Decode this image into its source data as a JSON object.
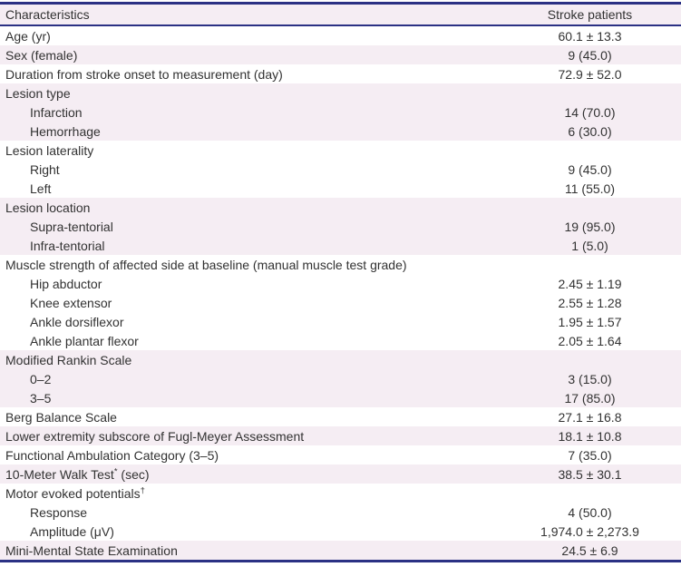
{
  "table": {
    "columns": {
      "characteristics": "Characteristics",
      "value": "Stroke patients"
    },
    "colors": {
      "accent_navy": "#2b3184",
      "stripe_pink": "#f5edf3",
      "text": "#323232"
    },
    "rows": [
      {
        "label": "Age (yr)",
        "sup": "",
        "suffix": "",
        "value": "60.1 ± 13.3",
        "indent": false,
        "shade": false
      },
      {
        "label": "Sex (female)",
        "sup": "",
        "suffix": "",
        "value": "9 (45.0)",
        "indent": false,
        "shade": true
      },
      {
        "label": "Duration from stroke onset to measurement (day)",
        "sup": "",
        "suffix": "",
        "value": "72.9 ± 52.0",
        "indent": false,
        "shade": false
      },
      {
        "label": "Lesion type",
        "sup": "",
        "suffix": "",
        "value": "",
        "indent": false,
        "shade": true
      },
      {
        "label": "Infarction",
        "sup": "",
        "suffix": "",
        "value": "14 (70.0)",
        "indent": true,
        "shade": true
      },
      {
        "label": "Hemorrhage",
        "sup": "",
        "suffix": "",
        "value": "6 (30.0)",
        "indent": true,
        "shade": true
      },
      {
        "label": "Lesion laterality",
        "sup": "",
        "suffix": "",
        "value": "",
        "indent": false,
        "shade": false
      },
      {
        "label": "Right",
        "sup": "",
        "suffix": "",
        "value": "9 (45.0)",
        "indent": true,
        "shade": false
      },
      {
        "label": "Left",
        "sup": "",
        "suffix": "",
        "value": "11 (55.0)",
        "indent": true,
        "shade": false
      },
      {
        "label": "Lesion location",
        "sup": "",
        "suffix": "",
        "value": "",
        "indent": false,
        "shade": true
      },
      {
        "label": "Supra-tentorial",
        "sup": "",
        "suffix": "",
        "value": "19 (95.0)",
        "indent": true,
        "shade": true
      },
      {
        "label": "Infra-tentorial",
        "sup": "",
        "suffix": "",
        "value": "1 (5.0)",
        "indent": true,
        "shade": true
      },
      {
        "label": "Muscle strength of affected side at baseline (manual muscle test grade)",
        "sup": "",
        "suffix": "",
        "value": "",
        "indent": false,
        "shade": false
      },
      {
        "label": "Hip abductor",
        "sup": "",
        "suffix": "",
        "value": "2.45 ± 1.19",
        "indent": true,
        "shade": false
      },
      {
        "label": "Knee extensor",
        "sup": "",
        "suffix": "",
        "value": "2.55 ± 1.28",
        "indent": true,
        "shade": false
      },
      {
        "label": "Ankle dorsiflexor",
        "sup": "",
        "suffix": "",
        "value": "1.95 ± 1.57",
        "indent": true,
        "shade": false
      },
      {
        "label": "Ankle plantar flexor",
        "sup": "",
        "suffix": "",
        "value": "2.05 ± 1.64",
        "indent": true,
        "shade": false
      },
      {
        "label": "Modified Rankin Scale",
        "sup": "",
        "suffix": "",
        "value": "",
        "indent": false,
        "shade": true
      },
      {
        "label": "0–2",
        "sup": "",
        "suffix": "",
        "value": "3 (15.0)",
        "indent": true,
        "shade": true
      },
      {
        "label": "3–5",
        "sup": "",
        "suffix": "",
        "value": "17 (85.0)",
        "indent": true,
        "shade": true
      },
      {
        "label": "Berg Balance Scale",
        "sup": "",
        "suffix": "",
        "value": "27.1 ± 16.8",
        "indent": false,
        "shade": false
      },
      {
        "label": "Lower extremity subscore of Fugl-Meyer Assessment",
        "sup": "",
        "suffix": "",
        "value": "18.1 ± 10.8",
        "indent": false,
        "shade": true
      },
      {
        "label": "Functional Ambulation Category (3–5)",
        "sup": "",
        "suffix": "",
        "value": "7 (35.0)",
        "indent": false,
        "shade": false
      },
      {
        "label": "10-Meter Walk Test",
        "sup": "*",
        "suffix": " (sec)",
        "value": "38.5 ± 30.1",
        "indent": false,
        "shade": true
      },
      {
        "label": "Motor evoked potentials",
        "sup": "†",
        "suffix": "",
        "value": "",
        "indent": false,
        "shade": false
      },
      {
        "label": "Response",
        "sup": "",
        "suffix": "",
        "value": "4 (50.0)",
        "indent": true,
        "shade": false
      },
      {
        "label": "Amplitude (μV)",
        "sup": "",
        "suffix": "",
        "value": "1,974.0 ± 2,273.9",
        "indent": true,
        "shade": false
      },
      {
        "label": "Mini-Mental State Examination",
        "sup": "",
        "suffix": "",
        "value": "24.5 ± 6.9",
        "indent": false,
        "shade": true
      }
    ]
  }
}
